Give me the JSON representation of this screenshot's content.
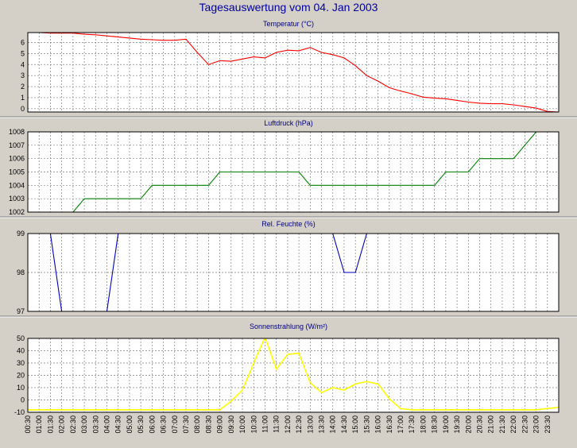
{
  "title": "Tagesauswertung vom 04. Jan 2003",
  "colors": {
    "background": "#d4d0c8",
    "plot_background": "#ffffff",
    "grid": "#7f7f7f",
    "title": "#0000a0",
    "panel_title": "#000080"
  },
  "x_ticks": [
    "00:30",
    "01:00",
    "01:30",
    "02:00",
    "02:30",
    "03:00",
    "03:30",
    "04:00",
    "04:30",
    "05:00",
    "05:30",
    "06:00",
    "06:30",
    "07:00",
    "07:30",
    "08:00",
    "08:30",
    "09:00",
    "09:30",
    "10:00",
    "10:30",
    "11:00",
    "11:30",
    "12:00",
    "12:30",
    "13:00",
    "13:30",
    "14:00",
    "14:30",
    "15:00",
    "15:30",
    "16:00",
    "16:30",
    "17:00",
    "17:30",
    "18:00",
    "18:30",
    "19:00",
    "19:30",
    "20:00",
    "20:30",
    "21:00",
    "21:30",
    "22:00",
    "22:30",
    "23:00",
    "23:30"
  ],
  "chart_data": [
    {
      "type": "line",
      "title": "Temperatur (°C)",
      "color": "#ff0000",
      "ylim": [
        -0.3,
        6.9
      ],
      "yticks": [
        0,
        1,
        2,
        3,
        4,
        5,
        6
      ],
      "grid": true,
      "x_hours": [
        0,
        0.5,
        1,
        1.5,
        2,
        2.5,
        3,
        3.5,
        4,
        4.5,
        5,
        5.5,
        6,
        6.5,
        7,
        7.5,
        8,
        8.5,
        9,
        9.5,
        10,
        10.5,
        11,
        11.5,
        12,
        12.5,
        13,
        13.5,
        14,
        14.5,
        15,
        15.5,
        16,
        16.5,
        17,
        17.5,
        18,
        18.5,
        19,
        19.5,
        20,
        20.5,
        21,
        21.5,
        22,
        22.5,
        23,
        23.5
      ],
      "values": [
        6.9,
        6.9,
        6.85,
        6.85,
        6.85,
        6.75,
        6.7,
        6.6,
        6.5,
        6.4,
        6.3,
        6.25,
        6.2,
        6.2,
        6.3,
        5.1,
        4.0,
        4.35,
        4.3,
        4.5,
        4.7,
        4.6,
        5.1,
        5.3,
        5.25,
        5.55,
        5.1,
        4.9,
        4.6,
        3.9,
        3.0,
        2.5,
        1.9,
        1.6,
        1.35,
        1.05,
        0.95,
        0.9,
        0.75,
        0.6,
        0.5,
        0.45,
        0.45,
        0.35,
        0.2,
        0.05,
        -0.25,
        -0.3
      ]
    },
    {
      "type": "line",
      "title": "Luftdruck (hPa)",
      "color": "#008000",
      "ylim": [
        1002,
        1008
      ],
      "yticks": [
        1002,
        1003,
        1004,
        1005,
        1006,
        1007,
        1008
      ],
      "grid": true,
      "x_hours": [
        2,
        2.5,
        5,
        5.5,
        8,
        8.5,
        12,
        12.5,
        18,
        18.5,
        19.5,
        20,
        21.5,
        22.5
      ],
      "values": [
        1002,
        1003,
        1003,
        1004,
        1004,
        1005,
        1005,
        1004,
        1004,
        1005,
        1005,
        1006,
        1006,
        1008
      ]
    },
    {
      "type": "line",
      "title": "Rel. Feuchte (%)",
      "color": "#0000c0",
      "ylim": [
        97,
        99
      ],
      "yticks": [
        97,
        98,
        99
      ],
      "grid": true,
      "x_hours": [
        1,
        1.5,
        3.5,
        4,
        13.5,
        14,
        14.5,
        15
      ],
      "values": [
        99,
        97,
        97,
        99,
        99,
        98,
        98,
        99
      ]
    },
    {
      "type": "area",
      "title": "Sonnenstrahlung (W/m²)",
      "color": "#ffff00",
      "ylim": [
        -10,
        50
      ],
      "yticks": [
        -10,
        0,
        10,
        20,
        30,
        40,
        50
      ],
      "grid": true,
      "x_hours": [
        0,
        4,
        7.5,
        8,
        8.5,
        9,
        9.5,
        10,
        10.5,
        11,
        11.5,
        12,
        12.5,
        13,
        13.5,
        14,
        14.5,
        15,
        15.5,
        16,
        16.5,
        17,
        20,
        22.5,
        23.5
      ],
      "values": [
        -8,
        -8,
        -8,
        -8,
        -8,
        -1,
        8,
        30,
        51,
        25,
        37,
        38,
        14,
        6,
        10,
        8,
        13,
        15,
        13,
        1,
        -7,
        -8,
        -8,
        -8,
        -6
      ]
    }
  ]
}
